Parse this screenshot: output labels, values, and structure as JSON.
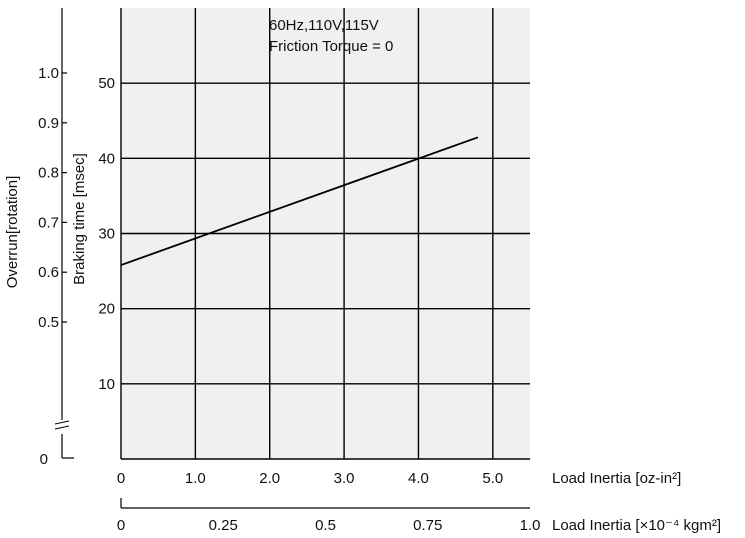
{
  "chart_data": {
    "type": "line",
    "annotation_lines": [
      "60Hz,110V,115V",
      "Friction Torque = 0"
    ],
    "x": [
      0,
      4.8
    ],
    "series": [
      {
        "values": [
          25.8,
          42.8
        ]
      }
    ],
    "xlim": [
      0,
      5.5
    ],
    "ylim": [
      0,
      60
    ],
    "xticks": [
      "0",
      "1.0",
      "2.0",
      "3.0",
      "4.0",
      "5.0"
    ],
    "yticks": [
      "10",
      "20",
      "30",
      "40",
      "50"
    ],
    "xlabel_prefix": "Load Inertia ",
    "xlabel_unit": "[oz-in²]",
    "ylabel": "Braking time [msec]",
    "secondary_x": {
      "xlim": [
        0,
        1.0
      ],
      "ticks": [
        "0",
        "0.25",
        "0.5",
        "0.75",
        "1.0"
      ],
      "label_prefix": "Load Inertia ",
      "label_unit": "[×10⁻⁴ kgm²]"
    },
    "secondary_y": {
      "ticks": [
        "0.5",
        "0.6",
        "0.7",
        "0.8",
        "0.9",
        "1.0"
      ],
      "zero_label": "0",
      "label": "Overrun[rotation]"
    },
    "grid": true,
    "background_color": "#f0f0f0",
    "line_color": "#000000"
  }
}
